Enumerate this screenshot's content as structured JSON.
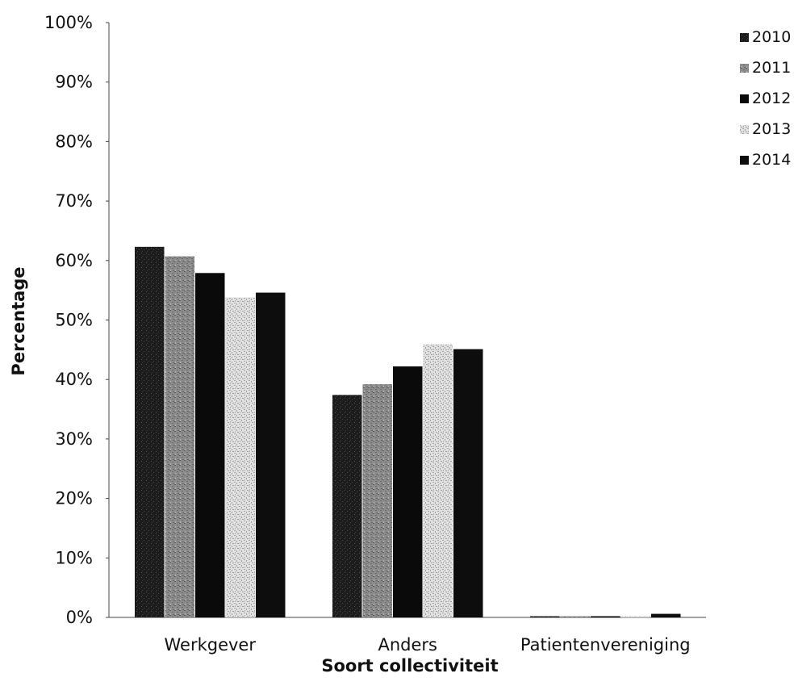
{
  "chart_data": {
    "type": "bar",
    "title": "",
    "xlabel": "Soort collectiviteit",
    "ylabel": "Percentage",
    "categories": [
      "Werkgever",
      "Anders",
      "Patientenvereniging"
    ],
    "series": [
      {
        "name": "2010",
        "values": [
          62.3,
          37.4,
          0.2
        ],
        "color": "#1e1e1e",
        "pattern": "dots-dark"
      },
      {
        "name": "2011",
        "values": [
          60.7,
          39.2,
          0.2
        ],
        "color": "#8a8a8a",
        "pattern": "speckle-gray"
      },
      {
        "name": "2012",
        "values": [
          57.9,
          42.2,
          0.2
        ],
        "color": "#0a0a0a",
        "pattern": "solid"
      },
      {
        "name": "2013",
        "values": [
          53.8,
          45.9,
          0.2
        ],
        "color": "#d6d6d6",
        "pattern": "speckle-light"
      },
      {
        "name": "2014",
        "values": [
          54.6,
          45.1,
          0.6
        ],
        "color": "#0d0d0d",
        "pattern": "solid"
      }
    ],
    "ylim": [
      0,
      100
    ],
    "yticks": [
      "0%",
      "10%",
      "20%",
      "30%",
      "40%",
      "50%",
      "60%",
      "70%",
      "80%",
      "90%",
      "100%"
    ],
    "grid": false,
    "legend": "right"
  }
}
